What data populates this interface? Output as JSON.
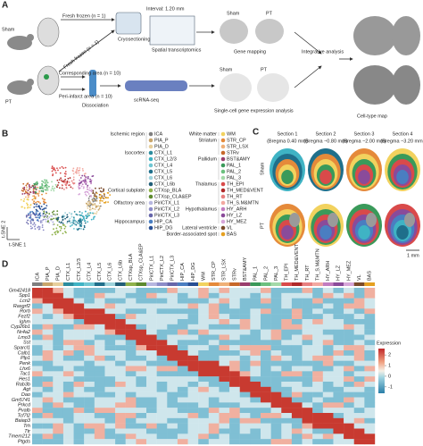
{
  "panel_a": {
    "label": "A",
    "sham": "Sham",
    "pt": "PT",
    "fresh_frozen_top": "Fresh frozen (n = 1)",
    "fresh_frozen_diag": "Fresh frozen (n = 1)",
    "interval": "Interval: 1.20 mm",
    "cryosectioning": "Cryosectioning",
    "spatial": "Spatial transcriptomics",
    "map_sham": "Sham",
    "map_pt": "PT",
    "gene_mapping": "Gene mapping",
    "corresponding": "Corresponding area (n = 10)",
    "peri_infarct": "Peri-infarct area (n = 10)",
    "dissociation": "Dissociation",
    "scrna": "scRNA-seq",
    "sc_sham": "Sham",
    "sc_pt": "PT",
    "sc_analysis": "Single-cell gene expression analysis",
    "integrative": "Integrative analysis",
    "cell_type_map": "Cell-type map"
  },
  "panel_b": {
    "label": "B",
    "x_axis": "t-SNE 1",
    "y_axis": "t-SNE 2",
    "groups": [
      {
        "name": "Ischemic region",
        "clusters": [
          {
            "name": "ICA",
            "color": "#7f7f7f"
          },
          {
            "name": "PIA_P",
            "color": "#c9a66b"
          },
          {
            "name": "PIA_D",
            "color": "#e7cf9c"
          }
        ]
      },
      {
        "name": "Isocortex",
        "clusters": [
          {
            "name": "CTX_L1",
            "color": "#2b8c9e"
          },
          {
            "name": "CTX_L2/3",
            "color": "#3fb3c4"
          },
          {
            "name": "CTX_L4",
            "color": "#6fc6d2"
          },
          {
            "name": "CTX_L5",
            "color": "#1f6f8b"
          },
          {
            "name": "CTX_L6",
            "color": "#9ed3dc"
          },
          {
            "name": "CTX_L6b",
            "color": "#205e78"
          }
        ]
      },
      {
        "name": "Cortical subplate",
        "clusters": [
          {
            "name": "CTXsp_BLA",
            "color": "#8fb24b"
          },
          {
            "name": "CTXsp_CLA&EP",
            "color": "#5d8a2e"
          }
        ]
      },
      {
        "name": "Olfactory area",
        "clusters": [
          {
            "name": "PiriCTX_L1",
            "color": "#b7b7e0"
          },
          {
            "name": "PiriCTX_L2",
            "color": "#8c8cc8"
          },
          {
            "name": "PiriCTX_L3",
            "color": "#6666aa"
          }
        ]
      },
      {
        "name": "Hippocampus",
        "clusters": [
          {
            "name": "HIP_CA",
            "color": "#4a7ec1"
          },
          {
            "name": "HIP_DG",
            "color": "#284f94"
          }
        ]
      },
      {
        "name": "White matter",
        "clusters": [
          {
            "name": "WM",
            "color": "#f2d25e"
          }
        ]
      },
      {
        "name": "Striatum",
        "clusters": [
          {
            "name": "STR_CP",
            "color": "#e58a3a"
          },
          {
            "name": "STR_LSX",
            "color": "#f0b077"
          },
          {
            "name": "STRv",
            "color": "#c7682a"
          }
        ]
      },
      {
        "name": "Pallidum",
        "clusters": [
          {
            "name": "BST&AMY",
            "color": "#9a3e6e"
          },
          {
            "name": "PAL_1",
            "color": "#3a9a5a"
          },
          {
            "name": "PAL_2",
            "color": "#6cc07f"
          },
          {
            "name": "PAL_3",
            "color": "#a3d9a8"
          }
        ]
      },
      {
        "name": "Thalamus",
        "clusters": [
          {
            "name": "TH_EPI",
            "color": "#d94a4a"
          },
          {
            "name": "TH_MED&VENT",
            "color": "#b02a2a"
          },
          {
            "name": "TH_RT",
            "color": "#e88080"
          },
          {
            "name": "TH_S.M&MTN",
            "color": "#f2a8a0"
          }
        ]
      },
      {
        "name": "Hypothalamus",
        "clusters": [
          {
            "name": "HY_ARH",
            "color": "#c27cc0"
          },
          {
            "name": "HY_LZ",
            "color": "#8a4b9a"
          },
          {
            "name": "HY_MEZ",
            "color": "#d7a6d9"
          }
        ]
      },
      {
        "name": "Lateral ventricle",
        "clusters": [
          {
            "name": "VL",
            "color": "#7a4a2a"
          }
        ]
      },
      {
        "name": "Border-associated spot",
        "clusters": [
          {
            "name": "BAS",
            "color": "#e5a020"
          }
        ]
      }
    ]
  },
  "panel_c": {
    "label": "C",
    "sections": [
      {
        "name": "Section 1",
        "bregma": "(Bregma 0.40 mm)"
      },
      {
        "name": "Section 2",
        "bregma": "(Bregma −0.80 mm)"
      },
      {
        "name": "Section 3",
        "bregma": "(Bregma −2.00 mm)"
      },
      {
        "name": "Section 4",
        "bregma": "(Bregma −3.20 mm)"
      }
    ],
    "row_sham": "Sham",
    "row_pt": "PT",
    "scale_bar": "1 mm"
  },
  "panel_d": {
    "label": "D",
    "genes": [
      "Gm42418",
      "Spp1",
      "Lcn2",
      "Rasgrf2",
      "Rorb",
      "Fezf2",
      "Ighm",
      "Cyp26b1",
      "Nr4a2",
      "Lmo3",
      "Sst",
      "Sparcl1",
      "Calb1",
      "Plp1",
      "Penk",
      "Lhx6",
      "Tac1",
      "Hes1",
      "Rab3b",
      "Agt",
      "Dao",
      "Gm5741",
      "Prkcd",
      "Pvalb",
      "Tcf7l2",
      "Baiap3",
      "Trh",
      "Ttr",
      "Tmem212",
      "Ptgds"
    ],
    "legend_title": "Expression",
    "legend_ticks": [
      2,
      1,
      0,
      -1
    ],
    "legend_lim": [
      -1.6,
      2.6
    ]
  }
}
